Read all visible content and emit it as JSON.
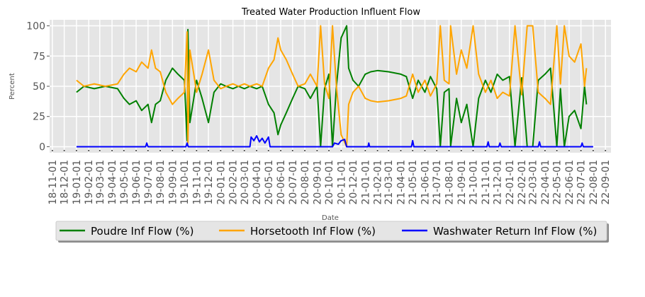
{
  "chart_data": {
    "type": "line",
    "title": "Treated Water Production Influent Flow",
    "xlabel": "Date",
    "ylabel": "Percent",
    "ylim": [
      -5,
      105
    ],
    "yticks": [
      0,
      25,
      50,
      75,
      100
    ],
    "x_range": [
      "2018-10-25",
      "2022-09-15"
    ],
    "x_ticks": [
      "18-11-01",
      "18-12-01",
      "19-01-01",
      "19-02-01",
      "19-03-01",
      "19-04-01",
      "19-05-01",
      "19-06-01",
      "19-07-01",
      "19-08-01",
      "19-09-01",
      "19-10-01",
      "19-11-01",
      "19-12-01",
      "20-01-01",
      "20-02-01",
      "20-03-01",
      "20-04-01",
      "20-05-01",
      "20-06-01",
      "20-07-01",
      "20-08-01",
      "20-09-01",
      "20-10-01",
      "20-11-01",
      "20-12-01",
      "21-01-01",
      "21-02-01",
      "21-03-01",
      "21-04-01",
      "21-05-01",
      "21-06-01",
      "21-07-01",
      "21-08-01",
      "21-09-01",
      "21-10-01",
      "21-11-01",
      "21-12-01",
      "22-01-01",
      "22-02-01",
      "22-03-01",
      "22-04-01",
      "22-05-01",
      "22-06-01",
      "22-07-01",
      "22-08-01",
      "22-09-01"
    ],
    "grid": true,
    "legend_position": "bottom",
    "series": [
      {
        "name": "Poudre Inf Flow (%)",
        "color": "#008000",
        "points": [
          [
            "2019-01-01",
            45
          ],
          [
            "2019-01-20",
            50
          ],
          [
            "2019-02-15",
            48
          ],
          [
            "2019-03-15",
            50
          ],
          [
            "2019-04-15",
            48
          ],
          [
            "2019-05-01",
            40
          ],
          [
            "2019-05-15",
            35
          ],
          [
            "2019-06-01",
            38
          ],
          [
            "2019-06-15",
            30
          ],
          [
            "2019-07-01",
            35
          ],
          [
            "2019-07-10",
            20
          ],
          [
            "2019-07-20",
            35
          ],
          [
            "2019-08-01",
            38
          ],
          [
            "2019-08-15",
            55
          ],
          [
            "2019-09-01",
            65
          ],
          [
            "2019-09-15",
            60
          ],
          [
            "2019-10-01",
            55
          ],
          [
            "2019-10-08",
            5
          ],
          [
            "2019-10-10",
            97
          ],
          [
            "2019-10-15",
            20
          ],
          [
            "2019-10-25",
            40
          ],
          [
            "2019-11-01",
            55
          ],
          [
            "2019-11-15",
            40
          ],
          [
            "2019-12-01",
            20
          ],
          [
            "2019-12-15",
            45
          ],
          [
            "2020-01-01",
            52
          ],
          [
            "2020-01-15",
            50
          ],
          [
            "2020-02-01",
            48
          ],
          [
            "2020-02-15",
            50
          ],
          [
            "2020-03-01",
            48
          ],
          [
            "2020-03-15",
            50
          ],
          [
            "2020-04-01",
            48
          ],
          [
            "2020-04-15",
            50
          ],
          [
            "2020-05-01",
            35
          ],
          [
            "2020-05-15",
            28
          ],
          [
            "2020-05-25",
            10
          ],
          [
            "2020-06-01",
            18
          ],
          [
            "2020-06-15",
            28
          ],
          [
            "2020-07-01",
            40
          ],
          [
            "2020-07-15",
            50
          ],
          [
            "2020-08-01",
            48
          ],
          [
            "2020-08-15",
            40
          ],
          [
            "2020-09-01",
            50
          ],
          [
            "2020-09-10",
            0
          ],
          [
            "2020-09-20",
            48
          ],
          [
            "2020-10-01",
            60
          ],
          [
            "2020-10-10",
            0
          ],
          [
            "2020-10-20",
            50
          ],
          [
            "2020-11-01",
            90
          ],
          [
            "2020-11-15",
            100
          ],
          [
            "2020-11-20",
            65
          ],
          [
            "2020-12-01",
            55
          ],
          [
            "2020-12-15",
            50
          ],
          [
            "2021-01-01",
            60
          ],
          [
            "2021-01-15",
            62
          ],
          [
            "2021-02-01",
            63
          ],
          [
            "2021-03-01",
            62
          ],
          [
            "2021-04-01",
            60
          ],
          [
            "2021-04-15",
            58
          ],
          [
            "2021-05-01",
            40
          ],
          [
            "2021-05-15",
            55
          ],
          [
            "2021-06-01",
            45
          ],
          [
            "2021-06-15",
            58
          ],
          [
            "2021-07-01",
            48
          ],
          [
            "2021-07-10",
            0
          ],
          [
            "2021-07-20",
            45
          ],
          [
            "2021-08-01",
            48
          ],
          [
            "2021-08-05",
            0
          ],
          [
            "2021-08-20",
            40
          ],
          [
            "2021-09-01",
            20
          ],
          [
            "2021-09-15",
            35
          ],
          [
            "2021-10-01",
            0
          ],
          [
            "2021-10-15",
            40
          ],
          [
            "2021-11-01",
            55
          ],
          [
            "2021-11-15",
            45
          ],
          [
            "2021-12-01",
            60
          ],
          [
            "2021-12-15",
            55
          ],
          [
            "2022-01-01",
            58
          ],
          [
            "2022-01-15",
            0
          ],
          [
            "2022-02-01",
            57
          ],
          [
            "2022-02-15",
            0
          ],
          [
            "2022-03-01",
            0
          ],
          [
            "2022-03-15",
            55
          ],
          [
            "2022-04-01",
            60
          ],
          [
            "2022-04-15",
            65
          ],
          [
            "2022-05-01",
            0
          ],
          [
            "2022-05-10",
            48
          ],
          [
            "2022-05-20",
            0
          ],
          [
            "2022-06-01",
            25
          ],
          [
            "2022-06-15",
            30
          ],
          [
            "2022-07-01",
            15
          ],
          [
            "2022-07-10",
            50
          ],
          [
            "2022-07-15",
            35
          ]
        ]
      },
      {
        "name": "Horsetooth Inf Flow (%)",
        "color": "#FFA500",
        "points": [
          [
            "2019-01-01",
            55
          ],
          [
            "2019-01-20",
            50
          ],
          [
            "2019-02-15",
            52
          ],
          [
            "2019-03-15",
            50
          ],
          [
            "2019-04-15",
            52
          ],
          [
            "2019-05-01",
            60
          ],
          [
            "2019-05-15",
            65
          ],
          [
            "2019-06-01",
            62
          ],
          [
            "2019-06-15",
            70
          ],
          [
            "2019-07-01",
            65
          ],
          [
            "2019-07-10",
            80
          ],
          [
            "2019-07-20",
            65
          ],
          [
            "2019-08-01",
            62
          ],
          [
            "2019-08-15",
            45
          ],
          [
            "2019-09-01",
            35
          ],
          [
            "2019-09-15",
            40
          ],
          [
            "2019-10-01",
            45
          ],
          [
            "2019-10-08",
            95
          ],
          [
            "2019-10-10",
            3
          ],
          [
            "2019-10-15",
            80
          ],
          [
            "2019-10-25",
            60
          ],
          [
            "2019-11-01",
            45
          ],
          [
            "2019-11-15",
            60
          ],
          [
            "2019-12-01",
            80
          ],
          [
            "2019-12-15",
            55
          ],
          [
            "2020-01-01",
            48
          ],
          [
            "2020-01-15",
            50
          ],
          [
            "2020-02-01",
            52
          ],
          [
            "2020-02-15",
            50
          ],
          [
            "2020-03-01",
            52
          ],
          [
            "2020-03-15",
            50
          ],
          [
            "2020-04-01",
            52
          ],
          [
            "2020-04-15",
            50
          ],
          [
            "2020-05-01",
            65
          ],
          [
            "2020-05-15",
            72
          ],
          [
            "2020-05-25",
            90
          ],
          [
            "2020-06-01",
            80
          ],
          [
            "2020-06-15",
            72
          ],
          [
            "2020-07-01",
            60
          ],
          [
            "2020-07-15",
            50
          ],
          [
            "2020-08-01",
            52
          ],
          [
            "2020-08-15",
            60
          ],
          [
            "2020-09-01",
            50
          ],
          [
            "2020-09-10",
            100
          ],
          [
            "2020-09-20",
            52
          ],
          [
            "2020-10-01",
            40
          ],
          [
            "2020-10-10",
            100
          ],
          [
            "2020-10-20",
            50
          ],
          [
            "2020-11-01",
            10
          ],
          [
            "2020-11-15",
            0
          ],
          [
            "2020-11-20",
            35
          ],
          [
            "2020-12-01",
            45
          ],
          [
            "2020-12-15",
            50
          ],
          [
            "2021-01-01",
            40
          ],
          [
            "2021-01-15",
            38
          ],
          [
            "2021-02-01",
            37
          ],
          [
            "2021-03-01",
            38
          ],
          [
            "2021-04-01",
            40
          ],
          [
            "2021-04-15",
            42
          ],
          [
            "2021-05-01",
            60
          ],
          [
            "2021-05-15",
            45
          ],
          [
            "2021-06-01",
            55
          ],
          [
            "2021-06-15",
            42
          ],
          [
            "2021-07-01",
            52
          ],
          [
            "2021-07-10",
            100
          ],
          [
            "2021-07-20",
            55
          ],
          [
            "2021-08-01",
            52
          ],
          [
            "2021-08-05",
            100
          ],
          [
            "2021-08-20",
            60
          ],
          [
            "2021-09-01",
            80
          ],
          [
            "2021-09-15",
            65
          ],
          [
            "2021-10-01",
            100
          ],
          [
            "2021-10-15",
            60
          ],
          [
            "2021-11-01",
            45
          ],
          [
            "2021-11-15",
            55
          ],
          [
            "2021-12-01",
            40
          ],
          [
            "2021-12-15",
            45
          ],
          [
            "2022-01-01",
            42
          ],
          [
            "2022-01-15",
            100
          ],
          [
            "2022-02-01",
            43
          ],
          [
            "2022-02-15",
            100
          ],
          [
            "2022-03-01",
            100
          ],
          [
            "2022-03-15",
            45
          ],
          [
            "2022-04-01",
            40
          ],
          [
            "2022-04-15",
            35
          ],
          [
            "2022-05-01",
            100
          ],
          [
            "2022-05-10",
            52
          ],
          [
            "2022-05-20",
            100
          ],
          [
            "2022-06-01",
            75
          ],
          [
            "2022-06-15",
            70
          ],
          [
            "2022-07-01",
            85
          ],
          [
            "2022-07-10",
            50
          ],
          [
            "2022-07-15",
            65
          ]
        ]
      },
      {
        "name": "Washwater Return Inf Flow (%)",
        "color": "#0000FF",
        "points": [
          [
            "2019-01-01",
            0
          ],
          [
            "2019-06-25",
            0
          ],
          [
            "2019-06-28",
            3
          ],
          [
            "2019-07-01",
            0
          ],
          [
            "2019-10-05",
            0
          ],
          [
            "2019-10-08",
            3
          ],
          [
            "2019-10-11",
            0
          ],
          [
            "2020-03-15",
            0
          ],
          [
            "2020-03-18",
            8
          ],
          [
            "2020-03-25",
            5
          ],
          [
            "2020-04-01",
            9
          ],
          [
            "2020-04-08",
            4
          ],
          [
            "2020-04-15",
            7
          ],
          [
            "2020-04-22",
            3
          ],
          [
            "2020-05-01",
            8
          ],
          [
            "2020-05-05",
            0
          ],
          [
            "2020-10-10",
            0
          ],
          [
            "2020-10-15",
            3
          ],
          [
            "2020-10-25",
            2
          ],
          [
            "2020-11-01",
            5
          ],
          [
            "2020-11-10",
            6
          ],
          [
            "2020-11-15",
            0
          ],
          [
            "2021-01-08",
            0
          ],
          [
            "2021-01-10",
            3
          ],
          [
            "2021-01-12",
            0
          ],
          [
            "2021-04-28",
            0
          ],
          [
            "2021-05-01",
            5
          ],
          [
            "2021-05-04",
            0
          ],
          [
            "2021-11-05",
            0
          ],
          [
            "2021-11-08",
            4
          ],
          [
            "2021-11-11",
            0
          ],
          [
            "2021-12-05",
            0
          ],
          [
            "2021-12-08",
            3
          ],
          [
            "2021-12-11",
            0
          ],
          [
            "2022-03-15",
            0
          ],
          [
            "2022-03-18",
            4
          ],
          [
            "2022-03-21",
            0
          ],
          [
            "2022-07-01",
            0
          ],
          [
            "2022-07-04",
            3
          ],
          [
            "2022-07-07",
            0
          ],
          [
            "2022-08-01",
            0
          ]
        ]
      }
    ]
  }
}
